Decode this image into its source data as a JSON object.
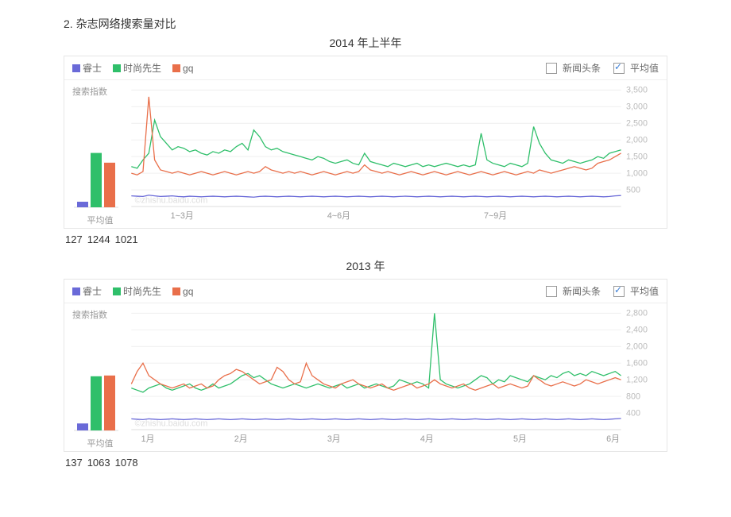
{
  "section_title": "2. 杂志网络搜索量对比",
  "legend": {
    "series": [
      {
        "key": "ruishi",
        "label": "睿士",
        "color": "#6a6ad8"
      },
      {
        "key": "shishang",
        "label": "时尚先生",
        "color": "#2fbf6a"
      },
      {
        "key": "gq",
        "label": "gq",
        "color": "#e96f4a"
      }
    ],
    "news_label": "新闻头条",
    "avg_label": "平均值",
    "news_checked": false,
    "avg_checked": true
  },
  "y_axis_title": "搜索指数",
  "avg_panel_caption": "平均值",
  "watermark": "©zhishu.baidu.com",
  "chart_2014": {
    "title": "2014 年上半年",
    "ylim": [
      0,
      3500
    ],
    "yticks": [
      500,
      1000,
      1500,
      2000,
      2500,
      3000,
      3500
    ],
    "ytick_labels": [
      "500",
      "1,000",
      "1,500",
      "2,000",
      "2,500",
      "3,000",
      "3,500"
    ],
    "xticks": [
      0.08,
      0.4,
      0.72
    ],
    "xtick_labels": [
      "1~3月",
      "4~6月",
      "7~9月"
    ],
    "avg_values": {
      "ruishi": 127,
      "shishang": 1244,
      "gq": 1021
    },
    "avg_bar_max": 1400,
    "series_data": {
      "ruishi": [
        320,
        310,
        300,
        340,
        320,
        300,
        310,
        320,
        300,
        290,
        310,
        300,
        290,
        300,
        310,
        300,
        290,
        300,
        310,
        300,
        290,
        280,
        300,
        310,
        300,
        290,
        300,
        310,
        300,
        290,
        300,
        310,
        300,
        290,
        300,
        310,
        300,
        290,
        300,
        310,
        300,
        290,
        300,
        310,
        300,
        290,
        300,
        310,
        300,
        290,
        300,
        310,
        300,
        290,
        300,
        310,
        300,
        290,
        300,
        310,
        300,
        290,
        300,
        310,
        300,
        290,
        300,
        310,
        300,
        290,
        300,
        310,
        300,
        290,
        300,
        310,
        300,
        290,
        300,
        310,
        300,
        290,
        300,
        320,
        330
      ],
      "shishang": [
        1200,
        1150,
        1400,
        1600,
        2600,
        2100,
        1900,
        1700,
        1800,
        1750,
        1650,
        1700,
        1600,
        1550,
        1650,
        1600,
        1700,
        1650,
        1800,
        1900,
        1700,
        2300,
        2100,
        1800,
        1700,
        1750,
        1650,
        1600,
        1550,
        1500,
        1450,
        1400,
        1500,
        1450,
        1350,
        1300,
        1350,
        1400,
        1300,
        1250,
        1600,
        1350,
        1300,
        1250,
        1200,
        1300,
        1250,
        1200,
        1250,
        1300,
        1200,
        1250,
        1200,
        1250,
        1300,
        1250,
        1200,
        1250,
        1200,
        1250,
        2200,
        1400,
        1300,
        1250,
        1200,
        1300,
        1250,
        1200,
        1300,
        2400,
        1900,
        1600,
        1400,
        1350,
        1300,
        1400,
        1350,
        1300,
        1350,
        1400,
        1500,
        1450,
        1600,
        1650,
        1700
      ],
      "gq": [
        1000,
        950,
        1050,
        3300,
        1400,
        1100,
        1050,
        1000,
        1050,
        1000,
        950,
        1000,
        1050,
        1000,
        950,
        1000,
        1050,
        1000,
        950,
        1000,
        1050,
        1000,
        1050,
        1200,
        1100,
        1050,
        1000,
        1050,
        1000,
        1050,
        1000,
        950,
        1000,
        1050,
        1000,
        950,
        1000,
        1050,
        1000,
        1050,
        1250,
        1100,
        1050,
        1000,
        1050,
        1000,
        950,
        1000,
        1050,
        1000,
        950,
        1000,
        1050,
        1000,
        950,
        1000,
        1050,
        1000,
        950,
        1000,
        1050,
        1000,
        950,
        1000,
        1050,
        1000,
        950,
        1000,
        1050,
        1000,
        1100,
        1050,
        1000,
        1050,
        1100,
        1150,
        1200,
        1150,
        1100,
        1150,
        1300,
        1350,
        1400,
        1500,
        1600
      ]
    },
    "values_text": [
      "127",
      "1244",
      "1021"
    ]
  },
  "chart_2013": {
    "title": "2013 年",
    "ylim": [
      0,
      2800
    ],
    "yticks": [
      400,
      800,
      1200,
      1600,
      2000,
      2400,
      2800
    ],
    "ytick_labels": [
      "400",
      "800",
      "1,200",
      "1,600",
      "2,000",
      "2,400",
      "2,800"
    ],
    "xticks": [
      0.02,
      0.21,
      0.4,
      0.59,
      0.78,
      0.97
    ],
    "xtick_labels": [
      "1月",
      "2月",
      "3月",
      "4月",
      "5月",
      "6月"
    ],
    "avg_values": {
      "ruishi": 137,
      "shishang": 1063,
      "gq": 1078
    },
    "avg_bar_max": 1200,
    "series_data": {
      "ruishi": [
        260,
        250,
        240,
        260,
        250,
        240,
        250,
        260,
        250,
        240,
        250,
        260,
        250,
        240,
        250,
        260,
        250,
        240,
        250,
        260,
        250,
        240,
        250,
        260,
        250,
        240,
        250,
        260,
        250,
        240,
        250,
        260,
        250,
        240,
        250,
        260,
        250,
        240,
        250,
        260,
        250,
        240,
        250,
        260,
        250,
        240,
        250,
        260,
        250,
        240,
        250,
        260,
        250,
        240,
        250,
        260,
        250,
        240,
        250,
        260,
        250,
        240,
        250,
        260,
        250,
        240,
        250,
        260,
        250,
        240,
        250,
        260,
        250,
        240,
        250,
        260,
        250,
        240,
        250,
        260,
        250,
        240,
        250,
        260,
        270
      ],
      "shishang": [
        1000,
        950,
        900,
        1000,
        1050,
        1100,
        1000,
        950,
        1000,
        1050,
        1100,
        1000,
        950,
        1000,
        1100,
        1000,
        1050,
        1100,
        1200,
        1300,
        1350,
        1250,
        1300,
        1200,
        1100,
        1050,
        1000,
        1050,
        1100,
        1050,
        1000,
        1050,
        1100,
        1050,
        1000,
        1050,
        1100,
        1000,
        1050,
        1100,
        1000,
        1050,
        1100,
        1050,
        1000,
        1050,
        1200,
        1150,
        1100,
        1150,
        1100,
        1000,
        2800,
        1200,
        1100,
        1050,
        1000,
        1050,
        1100,
        1200,
        1300,
        1250,
        1100,
        1200,
        1150,
        1300,
        1250,
        1200,
        1150,
        1300,
        1250,
        1200,
        1300,
        1250,
        1350,
        1400,
        1300,
        1350,
        1300,
        1400,
        1350,
        1300,
        1350,
        1400,
        1300
      ],
      "gq": [
        1100,
        1400,
        1600,
        1300,
        1200,
        1100,
        1050,
        1000,
        1050,
        1100,
        1000,
        1050,
        1100,
        1000,
        1050,
        1200,
        1300,
        1350,
        1450,
        1400,
        1300,
        1200,
        1100,
        1150,
        1200,
        1500,
        1400,
        1200,
        1100,
        1150,
        1600,
        1300,
        1200,
        1100,
        1050,
        1000,
        1100,
        1150,
        1200,
        1100,
        1050,
        1000,
        1050,
        1100,
        1000,
        950,
        1000,
        1050,
        1100,
        1000,
        1050,
        1100,
        1200,
        1100,
        1050,
        1000,
        1050,
        1100,
        1000,
        950,
        1000,
        1050,
        1100,
        1000,
        1050,
        1100,
        1050,
        1000,
        1050,
        1300,
        1200,
        1100,
        1050,
        1100,
        1150,
        1100,
        1050,
        1100,
        1200,
        1150,
        1100,
        1150,
        1200,
        1250,
        1200
      ]
    },
    "values_text": [
      "137",
      "1063",
      "1078"
    ]
  },
  "style": {
    "line_width": 1.2,
    "grid_color": "#f0f0f0",
    "axis_text_color": "#bbbbbb",
    "background": "#ffffff"
  }
}
